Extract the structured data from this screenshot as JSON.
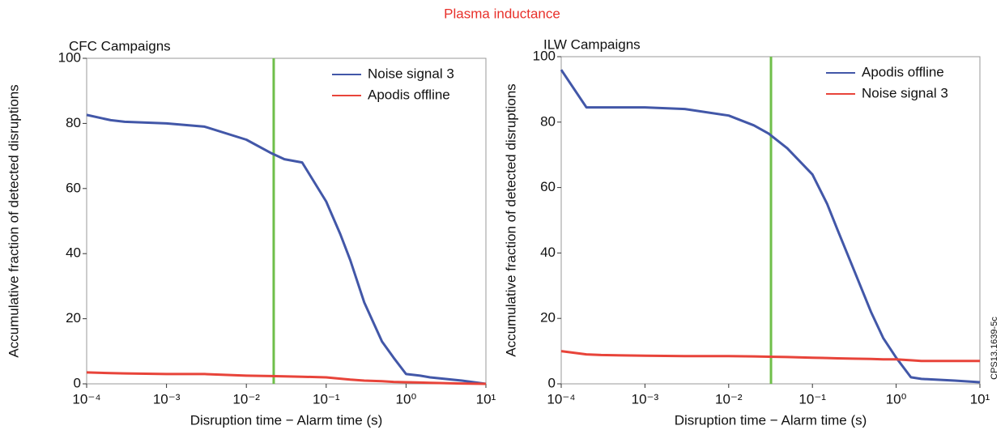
{
  "title": "Plasma inductance",
  "figure_id": "CPS13.1639-5c",
  "chart_data": [
    {
      "type": "line",
      "title": "CFC Campaigns",
      "x_label": "Disruption time − Alarm time (s)",
      "y_label": "Accumulative fraction of detected disruptions",
      "xscale": "log",
      "xlim": [
        0.0001,
        10
      ],
      "xticks": [
        {
          "value": 0.0001,
          "label": "10⁻⁴"
        },
        {
          "value": 0.001,
          "label": "10⁻³"
        },
        {
          "value": 0.01,
          "label": "10⁻²"
        },
        {
          "value": 0.1,
          "label": "10⁻¹"
        },
        {
          "value": 1,
          "label": "10⁰"
        },
        {
          "value": 10,
          "label": "10¹"
        }
      ],
      "ylim": [
        0,
        100
      ],
      "yticks": [
        0,
        20,
        40,
        60,
        80,
        100
      ],
      "legend": "upper right",
      "vline": 0.022,
      "vline_color": "#6fbf4a",
      "x": [
        0.0001,
        0.0002,
        0.0003,
        0.001,
        0.003,
        0.01,
        0.02,
        0.03,
        0.05,
        0.1,
        0.15,
        0.2,
        0.3,
        0.5,
        0.7,
        1,
        1.5,
        2,
        5,
        10
      ],
      "series": [
        {
          "name": "Noise signal 3",
          "color": "#4257a8",
          "values": [
            82.6,
            81,
            80.5,
            80,
            79,
            75,
            71,
            69,
            68,
            56,
            46,
            38,
            25,
            13,
            8,
            3,
            2.5,
            2,
            1,
            0
          ]
        },
        {
          "name": "Apodis offline",
          "color": "#e8443a",
          "values": [
            3.5,
            3.3,
            3.2,
            3,
            3,
            2.5,
            2.4,
            2.3,
            2.2,
            2,
            1.6,
            1.3,
            1,
            0.8,
            0.6,
            0.5,
            0.4,
            0.3,
            0.1,
            0
          ]
        }
      ]
    },
    {
      "type": "line",
      "title": "ILW Campaigns",
      "x_label": "Disruption time − Alarm time (s)",
      "y_label": "Accumulative fraction of detected disruptions",
      "xscale": "log",
      "xlim": [
        0.0001,
        10
      ],
      "xticks": [
        {
          "value": 0.0001,
          "label": "10⁻⁴"
        },
        {
          "value": 0.001,
          "label": "10⁻³"
        },
        {
          "value": 0.01,
          "label": "10⁻²"
        },
        {
          "value": 0.1,
          "label": "10⁻¹"
        },
        {
          "value": 1,
          "label": "10⁰"
        },
        {
          "value": 10,
          "label": "10¹"
        }
      ],
      "ylim": [
        0,
        100
      ],
      "yticks": [
        0,
        20,
        40,
        60,
        80,
        100
      ],
      "legend": "upper right",
      "vline": 0.032,
      "vline_color": "#6fbf4a",
      "x": [
        0.0001,
        0.0002,
        0.0003,
        0.001,
        0.003,
        0.01,
        0.02,
        0.03,
        0.05,
        0.1,
        0.15,
        0.2,
        0.3,
        0.5,
        0.7,
        1,
        1.5,
        2,
        5,
        10
      ],
      "series": [
        {
          "name": "Apodis offline",
          "color": "#4257a8",
          "values": [
            96,
            84.5,
            84.5,
            84.5,
            84,
            82,
            79,
            76.5,
            72,
            64,
            55,
            47,
            36,
            22,
            14,
            8,
            2,
            1.5,
            1,
            0.5
          ]
        },
        {
          "name": "Noise signal 3",
          "color": "#e8443a",
          "values": [
            10,
            9,
            8.8,
            8.6,
            8.5,
            8.5,
            8.4,
            8.3,
            8.2,
            8,
            7.9,
            7.8,
            7.7,
            7.6,
            7.5,
            7.5,
            7.2,
            7,
            7,
            7
          ]
        }
      ]
    }
  ]
}
